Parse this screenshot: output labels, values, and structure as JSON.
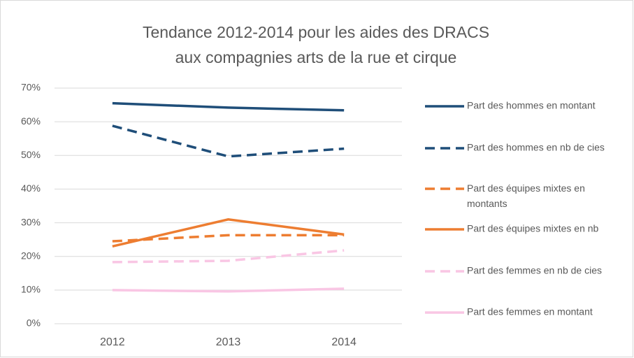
{
  "chart_data": {
    "type": "line",
    "title": [
      "Tendance 2012-2014 pour les aides des DRACS",
      "aux compagnies arts de la rue et cirque"
    ],
    "categories": [
      "2012",
      "2013",
      "2014"
    ],
    "ylim": [
      0,
      70
    ],
    "yticks": [
      {
        "value": 0,
        "label": "0%"
      },
      {
        "value": 10,
        "label": "10%"
      },
      {
        "value": 20,
        "label": "20%"
      },
      {
        "value": 30,
        "label": "30%"
      },
      {
        "value": 40,
        "label": "40%"
      },
      {
        "value": 50,
        "label": "50%"
      },
      {
        "value": 60,
        "label": "60%"
      },
      {
        "value": 70,
        "label": "70%"
      }
    ],
    "grid": true,
    "legend": "right",
    "series": [
      {
        "name": "Part des hommes en montant",
        "color": "#1f4e79",
        "dash": "solid",
        "values": [
          65.5,
          64.2,
          63.4
        ]
      },
      {
        "name": "Part des hommes en nb de cies",
        "color": "#1f4e79",
        "dash": "dashed",
        "values": [
          58.8,
          49.7,
          52.0
        ]
      },
      {
        "name": "Part des équipes mixtes en montants",
        "color": "#ed7d31",
        "dash": "dashed",
        "values": [
          24.5,
          26.3,
          26.3
        ]
      },
      {
        "name": "Part des équipes mixtes en nb",
        "color": "#ed7d31",
        "dash": "solid",
        "values": [
          23.0,
          31.0,
          26.5
        ]
      },
      {
        "name": "Part des femmes en nb de cies",
        "color": "#f9c6e4",
        "dash": "dashed",
        "values": [
          18.3,
          18.7,
          21.8
        ]
      },
      {
        "name": "Part des femmes en montant",
        "color": "#f9c6e4",
        "dash": "solid",
        "values": [
          10.0,
          9.6,
          10.4
        ]
      }
    ]
  }
}
